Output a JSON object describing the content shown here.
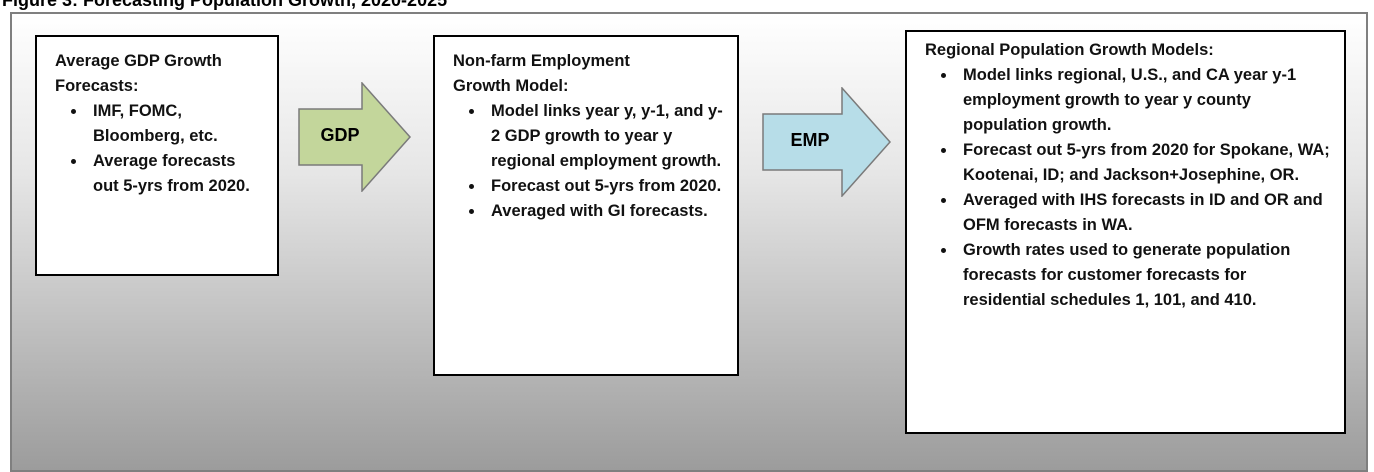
{
  "title": "Figure 3: Forecasting Population Growth, 2020-2025",
  "nodes": [
    {
      "heading": "Average GDP Growth Forecasts:",
      "bullets": [
        "IMF, FOMC, Bloomberg, etc.",
        "Average forecasts out 5-yrs from 2020."
      ]
    },
    {
      "heading": "Non-farm Employment Growth Model:",
      "bullets": [
        "Model links year y, y-1, and y-2 GDP growth to year y regional employment growth.",
        "Forecast out 5-yrs from 2020.",
        "Averaged with GI forecasts."
      ]
    },
    {
      "heading": "Regional Population Growth Models:",
      "bullets": [
        "Model links regional, U.S., and CA year y-1 employment growth to year y county population growth.",
        "Forecast out 5-yrs from 2020 for Spokane, WA; Kootenai, ID; and Jackson+Josephine, OR.",
        "Averaged with IHS forecasts in ID and OR and OFM forecasts in WA.",
        "Growth rates used to generate population forecasts for customer forecasts for residential schedules 1, 101, and 410."
      ]
    }
  ],
  "arrows": [
    {
      "label": "GDP"
    },
    {
      "label": "EMP"
    }
  ]
}
